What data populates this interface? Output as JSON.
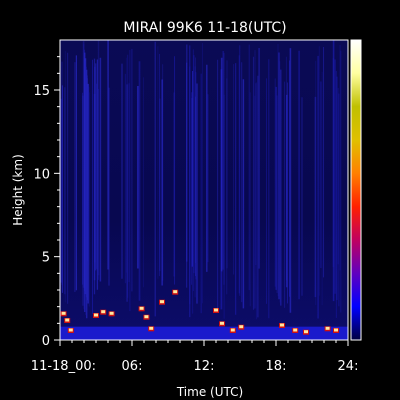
{
  "chart_data": {
    "type": "heatmap",
    "title": "MIRAI 99K6 11-18(UTC)",
    "xlabel": "Time (UTC)",
    "ylabel": "Height (km)",
    "x_ticks": [
      "11-18_00:",
      "06:",
      "12:",
      "18:",
      "24:"
    ],
    "x_tick_values": [
      0,
      6,
      12,
      18,
      24
    ],
    "y_ticks": [
      "0",
      "5",
      "10",
      "15"
    ],
    "y_tick_values": [
      0,
      5,
      10,
      15
    ],
    "xlim": [
      0,
      24
    ],
    "ylim": [
      0,
      18
    ],
    "colorbar": {
      "colors": [
        "#000040",
        "#0000ff",
        "#6000c0",
        "#c00060",
        "#ff2000",
        "#ff8000",
        "#e0c000",
        "#c0c000",
        "#ffffa0",
        "#ffffff"
      ]
    },
    "background_color": "#000000",
    "low_layer": {
      "y_range": [
        0,
        0.8
      ],
      "color": "#1a1acc"
    },
    "echo_features": [
      {
        "t": 0.3,
        "h": 1.6
      },
      {
        "t": 0.6,
        "h": 1.2
      },
      {
        "t": 0.9,
        "h": 0.6
      },
      {
        "t": 3.0,
        "h": 1.5
      },
      {
        "t": 3.6,
        "h": 1.7
      },
      {
        "t": 4.3,
        "h": 1.6
      },
      {
        "t": 6.8,
        "h": 1.9
      },
      {
        "t": 7.2,
        "h": 1.4
      },
      {
        "t": 7.6,
        "h": 0.7
      },
      {
        "t": 8.5,
        "h": 2.3
      },
      {
        "t": 9.6,
        "h": 2.9
      },
      {
        "t": 13.0,
        "h": 1.8
      },
      {
        "t": 13.5,
        "h": 1.0
      },
      {
        "t": 14.4,
        "h": 0.6
      },
      {
        "t": 15.1,
        "h": 0.8
      },
      {
        "t": 18.5,
        "h": 0.9
      },
      {
        "t": 19.6,
        "h": 0.6
      },
      {
        "t": 20.5,
        "h": 0.5
      },
      {
        "t": 22.3,
        "h": 0.7
      },
      {
        "t": 23.0,
        "h": 0.6
      }
    ]
  }
}
